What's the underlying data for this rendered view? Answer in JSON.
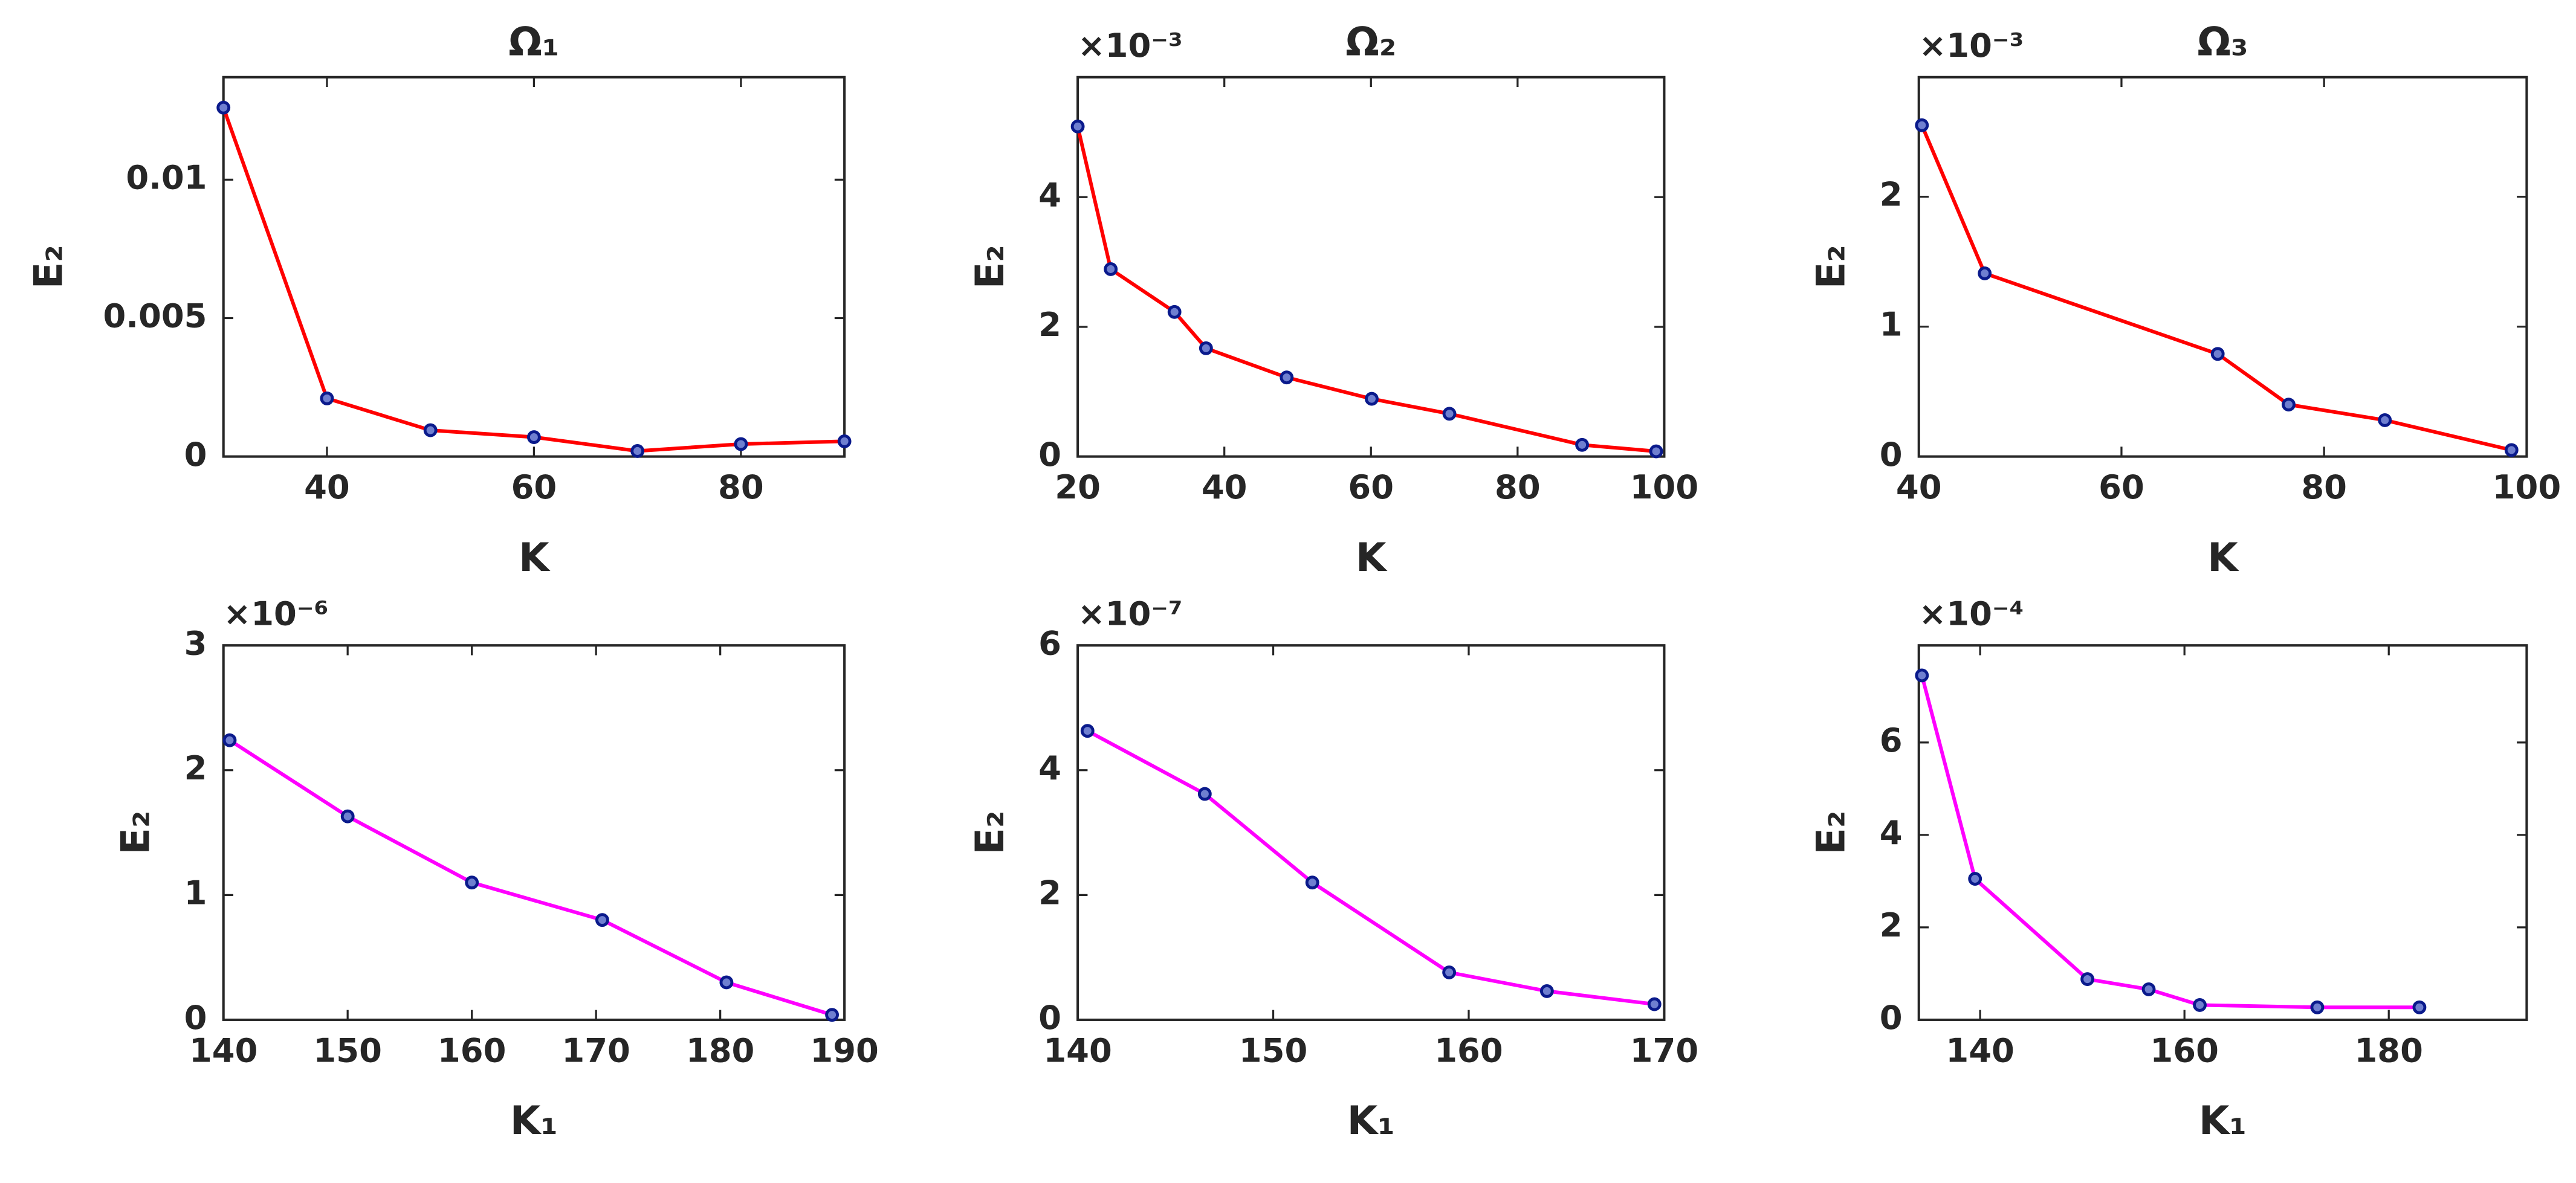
{
  "chart_data": [
    {
      "type": "line",
      "title": "Ω₁",
      "xlabel": "K",
      "ylabel": "E₂",
      "x": [
        30,
        40,
        50,
        60,
        70,
        80,
        90
      ],
      "series": [
        {
          "color": "#ff0000",
          "marker_color": "#0a1a8c",
          "values": [
            0.0126,
            0.0021,
            0.00095,
            0.0007,
            0.0002,
            0.00045,
            0.00055
          ]
        }
      ],
      "xlim": [
        30,
        90
      ],
      "xticks": [
        40,
        60,
        80
      ],
      "ylim": [
        0,
        0.0137
      ],
      "yticks": [
        0,
        0.005,
        0.01
      ]
    },
    {
      "type": "line",
      "title": "Ω₂",
      "xlabel": "K",
      "ylabel": "E₂",
      "exponent_label": "×10⁻³",
      "x": [
        20,
        24.5,
        33.2,
        37.5,
        48.5,
        60.1,
        70.7,
        88.8,
        98.9
      ],
      "series": [
        {
          "color": "#ff0000",
          "marker_color": "#0a1a8c",
          "values": [
            5.09,
            2.89,
            2.23,
            1.67,
            1.22,
            0.89,
            0.66,
            0.18,
            0.08
          ]
        }
      ],
      "xlim": [
        20,
        100
      ],
      "xticks": [
        20,
        40,
        60,
        80,
        100
      ],
      "ylim": [
        0,
        5.85
      ],
      "yticks": [
        0,
        2,
        4
      ]
    },
    {
      "type": "line",
      "title": "Ω₃",
      "xlabel": "K",
      "ylabel": "E₂",
      "exponent_label": "×10⁻³",
      "x": [
        40.3,
        46.5,
        69.5,
        76.5,
        86,
        98.5
      ],
      "series": [
        {
          "color": "#ff0000",
          "marker_color": "#0a1a8c",
          "values": [
            2.55,
            1.41,
            0.79,
            0.4,
            0.28,
            0.05
          ]
        }
      ],
      "xlim": [
        40,
        100
      ],
      "xticks": [
        40,
        60,
        80,
        100
      ],
      "ylim": [
        0,
        2.92
      ],
      "yticks": [
        0,
        1,
        2
      ]
    },
    {
      "type": "line",
      "xlabel": "K₁",
      "ylabel": "E₂",
      "exponent_label": "×10⁻⁶",
      "x": [
        140.5,
        150,
        160,
        170.5,
        180.5,
        189
      ],
      "series": [
        {
          "color": "#ff00ff",
          "marker_color": "#0a1a8c",
          "values": [
            2.24,
            1.63,
            1.1,
            0.8,
            0.3,
            0.04
          ]
        }
      ],
      "xlim": [
        140,
        190
      ],
      "xticks": [
        140,
        150,
        160,
        170,
        180,
        190
      ],
      "ylim": [
        0,
        3
      ],
      "yticks": [
        0,
        1,
        2,
        3
      ]
    },
    {
      "type": "line",
      "xlabel": "K₁",
      "ylabel": "E₂",
      "exponent_label": "×10⁻⁷",
      "x": [
        140.5,
        146.5,
        152,
        159,
        164,
        169.5
      ],
      "series": [
        {
          "color": "#ff00ff",
          "marker_color": "#0a1a8c",
          "values": [
            4.63,
            3.62,
            2.2,
            0.76,
            0.46,
            0.25
          ]
        }
      ],
      "xlim": [
        140,
        170
      ],
      "xticks": [
        140,
        150,
        160,
        170
      ],
      "ylim": [
        0,
        6
      ],
      "yticks": [
        0,
        2,
        4,
        6
      ]
    },
    {
      "type": "line",
      "xlabel": "K₁",
      "ylabel": "E₂",
      "exponent_label": "×10⁻⁴",
      "x": [
        134.3,
        139.5,
        150.5,
        156.5,
        161.5,
        173,
        183
      ],
      "series": [
        {
          "color": "#ff00ff",
          "marker_color": "#0a1a8c",
          "values": [
            7.45,
            3.05,
            0.88,
            0.66,
            0.32,
            0.27,
            0.27
          ]
        }
      ],
      "xlim": [
        134,
        193.5
      ],
      "xticks": [
        140,
        160,
        180
      ],
      "ylim": [
        0,
        8.1
      ],
      "yticks": [
        0,
        2,
        4,
        6
      ]
    }
  ]
}
